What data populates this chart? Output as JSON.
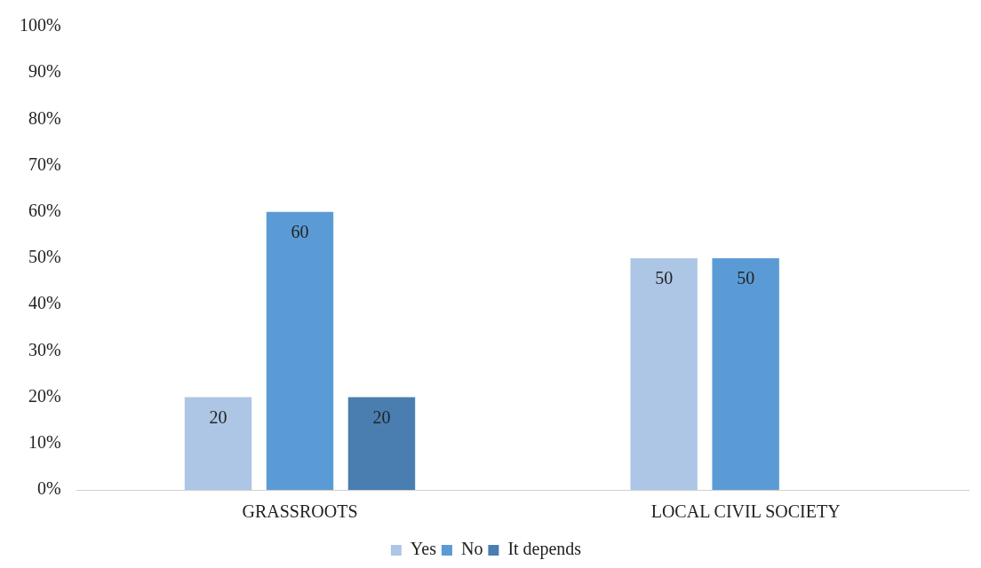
{
  "chart_data": {
    "type": "bar",
    "categories": [
      "GRASSROOTS",
      "LOCAL CIVIL SOCIETY"
    ],
    "series": [
      {
        "name": "Yes",
        "color": "#adc6e5",
        "values": [
          20,
          50
        ]
      },
      {
        "name": "No",
        "color": "#5b9bd5",
        "values": [
          60,
          50
        ]
      },
      {
        "name": "It depends",
        "color": "#4a7eb0",
        "values": [
          20,
          null
        ]
      }
    ],
    "ylim": [
      0,
      100
    ],
    "yticks": [
      {
        "value": 0,
        "label": "0%"
      },
      {
        "value": 10,
        "label": "10%"
      },
      {
        "value": 20,
        "label": "20%"
      },
      {
        "value": 30,
        "label": "30%"
      },
      {
        "value": 40,
        "label": "40%"
      },
      {
        "value": 50,
        "label": "50%"
      },
      {
        "value": 60,
        "label": "60%"
      },
      {
        "value": 70,
        "label": "70%"
      },
      {
        "value": 80,
        "label": "80%"
      },
      {
        "value": 90,
        "label": "90%"
      },
      {
        "value": 100,
        "label": "100%"
      }
    ],
    "grid": false,
    "legend": "bottom",
    "data_labels": true
  }
}
